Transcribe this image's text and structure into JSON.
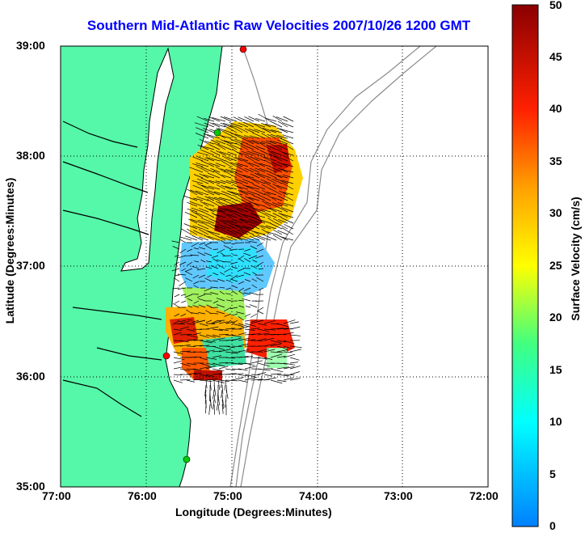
{
  "title": "Southern Mid-Atlantic Raw Velocities 2007/10/26 1200 GMT",
  "xlabel": "Longitude (Degrees:Minutes)",
  "ylabel": "Latitude (Degrees:Minutes)",
  "colorbar_label": "Surface Velocity (cm/s)",
  "x_ticks": [
    "77:00",
    "76:00",
    "75:00",
    "74:00",
    "73:00",
    "72:00"
  ],
  "y_ticks": [
    "39:00",
    "38:00",
    "37:00",
    "36:00",
    "35:00"
  ],
  "cb_ticks": [
    "0",
    "5",
    "10",
    "15",
    "20",
    "25",
    "30",
    "35",
    "40",
    "45",
    "50"
  ],
  "colors": {
    "land": "#55f7a8",
    "title": "#0000ff",
    "bathymetry": "#8c8c8c"
  },
  "chart_data": {
    "type": "heatmap",
    "title": "Southern Mid-Atlantic Raw Velocities 2007/10/26 1200 GMT",
    "xlabel": "Longitude (Degrees:Minutes)",
    "ylabel": "Latitude (Degrees:Minutes)",
    "xlim": [
      -77.0,
      -72.0
    ],
    "ylim": [
      35.0,
      39.0
    ],
    "grid": true,
    "colorbar": {
      "label": "Surface Velocity (cm/s)",
      "range": [
        0,
        50
      ],
      "colormap": "jet"
    },
    "stations": [
      {
        "lon": -74.83,
        "lat": 38.92,
        "color": "#ff0000"
      },
      {
        "lon": -75.08,
        "lat": 38.23,
        "color": "#00cc00"
      },
      {
        "lon": -75.73,
        "lat": 36.18,
        "color": "#ff0000"
      },
      {
        "lon": -75.47,
        "lat": 35.26,
        "color": "#00cc00"
      }
    ]
  }
}
